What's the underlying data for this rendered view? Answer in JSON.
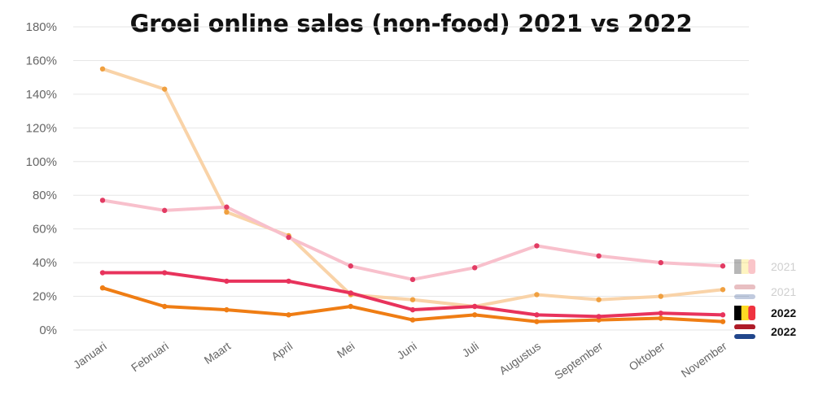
{
  "chart_data": {
    "type": "line",
    "title": "Groei online sales (non-food) 2021 vs 2022",
    "xlabel": "",
    "ylabel": "",
    "ylim": [
      0,
      180
    ],
    "ytick_step": 20,
    "y_unit": "%",
    "grid": true,
    "legend_position": "right",
    "categories": [
      "Januari",
      "Februari",
      "Maart",
      "April",
      "Mei",
      "Juni",
      "Juli",
      "Augustus",
      "September",
      "Oktober",
      "November"
    ],
    "series": [
      {
        "name": "2021",
        "flag": "belgium",
        "color": "#f9d3a8",
        "marker_color": "#f0a040",
        "values": [
          155,
          143,
          70,
          56,
          21,
          18,
          14,
          21,
          18,
          20,
          24
        ]
      },
      {
        "name": "2021",
        "flag": "netherlands",
        "color": "#f8c0cc",
        "marker_color": "#e23b63",
        "values": [
          77,
          71,
          73,
          55,
          38,
          30,
          37,
          50,
          44,
          40,
          38
        ]
      },
      {
        "name": "2022",
        "flag": "belgium",
        "color": "#ef7d14",
        "marker_color": "#ef7d14",
        "values": [
          25,
          14,
          12,
          9,
          14,
          6,
          9,
          5,
          6,
          7,
          5
        ]
      },
      {
        "name": "2022",
        "flag": "netherlands",
        "color": "#e8335c",
        "marker_color": "#e8335c",
        "values": [
          34,
          34,
          29,
          29,
          22,
          12,
          14,
          9,
          8,
          10,
          9
        ]
      }
    ]
  }
}
